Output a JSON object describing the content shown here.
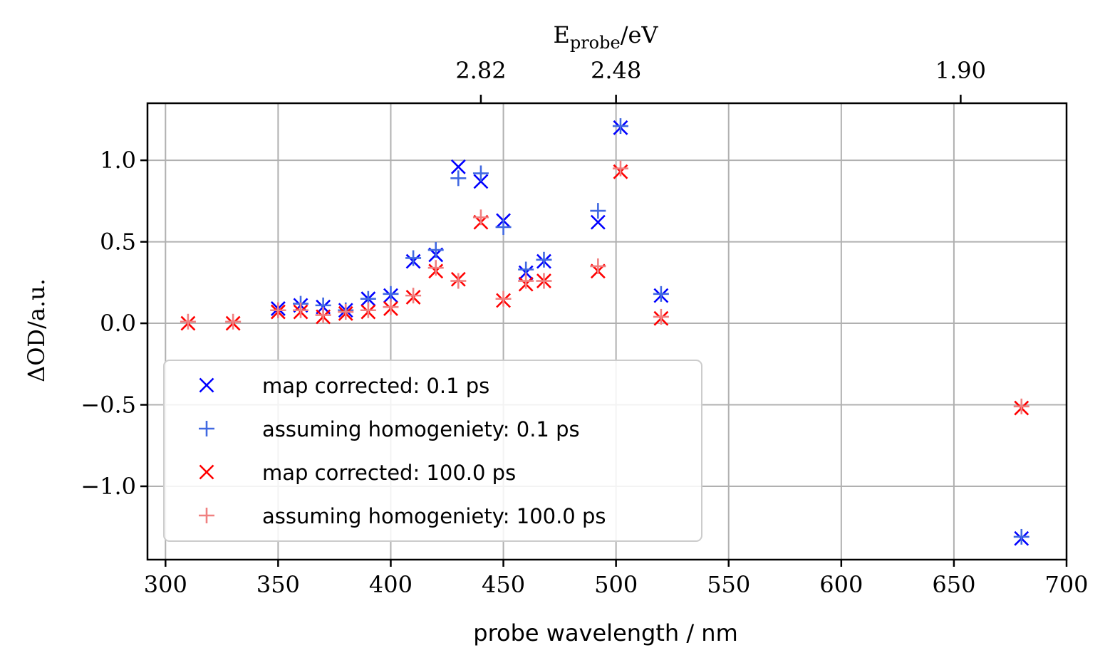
{
  "chart_data": {
    "type": "scatter",
    "xlabel": "probe wavelength / nm",
    "ylabel": "ΔOD/a.u.",
    "top_axis": {
      "label_main": "E",
      "label_sub": "probe",
      "label_unit": "/eV",
      "ticks": [
        {
          "wavelength": 440,
          "label": "2.82"
        },
        {
          "wavelength": 500,
          "label": "2.48"
        },
        {
          "wavelength": 653,
          "label": "1.90"
        }
      ]
    },
    "xlim": [
      292,
      700
    ],
    "ylim": [
      -1.45,
      1.35
    ],
    "xticks": [
      300,
      350,
      400,
      450,
      500,
      550,
      600,
      650,
      700
    ],
    "xtick_labels": [
      "300",
      "350",
      "400",
      "450",
      "500",
      "550",
      "600",
      "650",
      "700"
    ],
    "yticks": [
      1.0,
      0.5,
      0.0,
      -0.5,
      -1.0
    ],
    "ytick_labels": [
      "1.0",
      "0.5",
      "0.0",
      "−0.5",
      "−1.0"
    ],
    "grid": true,
    "legend_position": "lower-left",
    "series": [
      {
        "name": "map corrected: 0.1 ps",
        "marker": "x",
        "color": "#0000ff",
        "points": [
          [
            350,
            0.09
          ],
          [
            360,
            0.11
          ],
          [
            370,
            0.1
          ],
          [
            380,
            0.08
          ],
          [
            390,
            0.15
          ],
          [
            400,
            0.17
          ],
          [
            410,
            0.38
          ],
          [
            420,
            0.42
          ],
          [
            430,
            0.96
          ],
          [
            440,
            0.87
          ],
          [
            450,
            0.63
          ],
          [
            460,
            0.31
          ],
          [
            468,
            0.38
          ],
          [
            492,
            0.62
          ],
          [
            502,
            1.2
          ],
          [
            520,
            0.17
          ],
          [
            680,
            -1.32
          ]
        ]
      },
      {
        "name": "assuming homogeniety: 0.1 ps",
        "marker": "+",
        "color": "#4169e1",
        "points": [
          [
            350,
            0.08
          ],
          [
            360,
            0.12
          ],
          [
            370,
            0.11
          ],
          [
            380,
            0.08
          ],
          [
            390,
            0.15
          ],
          [
            400,
            0.18
          ],
          [
            410,
            0.4
          ],
          [
            420,
            0.45
          ],
          [
            430,
            0.89
          ],
          [
            440,
            0.92
          ],
          [
            450,
            0.59
          ],
          [
            460,
            0.33
          ],
          [
            468,
            0.39
          ],
          [
            492,
            0.69
          ],
          [
            502,
            1.21
          ],
          [
            520,
            0.18
          ],
          [
            680,
            -1.31
          ]
        ]
      },
      {
        "name": "map corrected: 100.0 ps",
        "marker": "x",
        "color": "#ff0000",
        "points": [
          [
            310,
            0.0
          ],
          [
            330,
            0.0
          ],
          [
            350,
            0.07
          ],
          [
            360,
            0.07
          ],
          [
            370,
            0.04
          ],
          [
            380,
            0.06
          ],
          [
            390,
            0.07
          ],
          [
            400,
            0.09
          ],
          [
            410,
            0.16
          ],
          [
            420,
            0.32
          ],
          [
            430,
            0.27
          ],
          [
            440,
            0.62
          ],
          [
            450,
            0.14
          ],
          [
            460,
            0.24
          ],
          [
            468,
            0.26
          ],
          [
            492,
            0.32
          ],
          [
            502,
            0.93
          ],
          [
            520,
            0.03
          ],
          [
            680,
            -0.52
          ]
        ]
      },
      {
        "name": "assuming homogeniety: 100.0 ps",
        "marker": "+",
        "color": "#f08080",
        "points": [
          [
            310,
            0.01
          ],
          [
            330,
            0.01
          ],
          [
            350,
            0.08
          ],
          [
            360,
            0.08
          ],
          [
            370,
            0.05
          ],
          [
            380,
            0.07
          ],
          [
            390,
            0.08
          ],
          [
            400,
            0.1
          ],
          [
            410,
            0.17
          ],
          [
            420,
            0.34
          ],
          [
            430,
            0.26
          ],
          [
            440,
            0.65
          ],
          [
            450,
            0.15
          ],
          [
            460,
            0.26
          ],
          [
            468,
            0.26
          ],
          [
            492,
            0.35
          ],
          [
            502,
            0.95
          ],
          [
            520,
            0.04
          ],
          [
            680,
            -0.51
          ]
        ]
      }
    ]
  }
}
